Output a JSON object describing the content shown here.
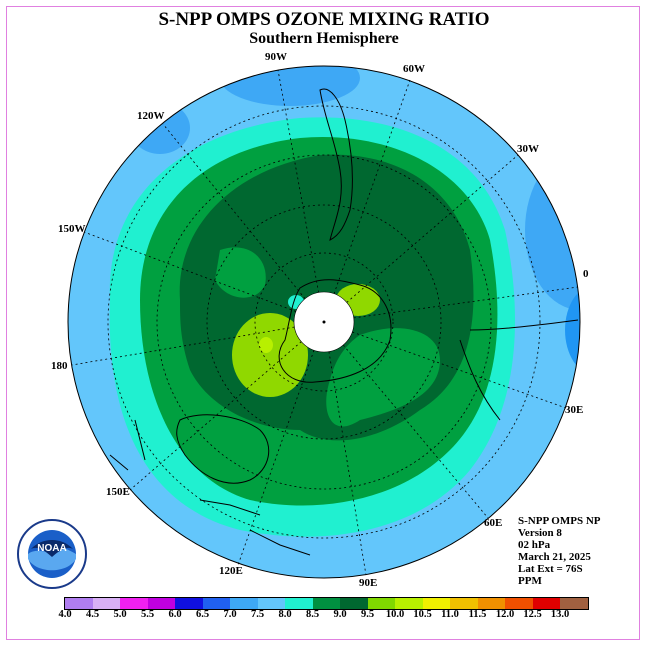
{
  "title": "S-NPP OMPS OZONE MIXING RATIO",
  "subtitle": "Southern Hemisphere",
  "longitude_labels": [
    {
      "text": "90W"
    },
    {
      "text": "60W"
    },
    {
      "text": "30W"
    },
    {
      "text": "0"
    },
    {
      "text": "30E"
    },
    {
      "text": "60E"
    },
    {
      "text": "90E"
    },
    {
      "text": "120E"
    },
    {
      "text": "150E"
    },
    {
      "text": "180"
    },
    {
      "text": "150W"
    },
    {
      "text": "120W"
    }
  ],
  "info": {
    "line1": "S-NPP OMPS NP",
    "line2": "Version 8",
    "line3": "02 hPa",
    "line4": "March 21, 2025",
    "line5": "Lat Ext = 76S",
    "line6": "PPM"
  },
  "logo": {
    "text": "NOAA"
  },
  "colorbar": {
    "ticks": [
      "4.0",
      "4.5",
      "5.0",
      "5.5",
      "6.0",
      "6.5",
      "7.0",
      "7.5",
      "8.0",
      "8.5",
      "9.0",
      "9.5",
      "10.0",
      "10.5",
      "11.0",
      "11.5",
      "12.0",
      "12.5",
      "13.0"
    ],
    "colors": [
      "#b07ef0",
      "#d8b0f5",
      "#f020f0",
      "#c000e0",
      "#1010e0",
      "#2060f0",
      "#3ea8f5",
      "#63c6fb",
      "#20f0d0",
      "#009040",
      "#006830",
      "#80d800",
      "#b8f000",
      "#f0f000",
      "#f0c000",
      "#f09000",
      "#f05000",
      "#e00000",
      "#a06040"
    ]
  },
  "map_colors": {
    "band_6_5": "#2096f3",
    "band_7_0": "#3ea8f5",
    "band_7_5": "#63c6fb",
    "band_8_0": "#20f0d0",
    "band_8_5": "#00a040",
    "band_9_0": "#006830",
    "band_9_5": "#90d800",
    "band_10_0": "#b8f000"
  }
}
